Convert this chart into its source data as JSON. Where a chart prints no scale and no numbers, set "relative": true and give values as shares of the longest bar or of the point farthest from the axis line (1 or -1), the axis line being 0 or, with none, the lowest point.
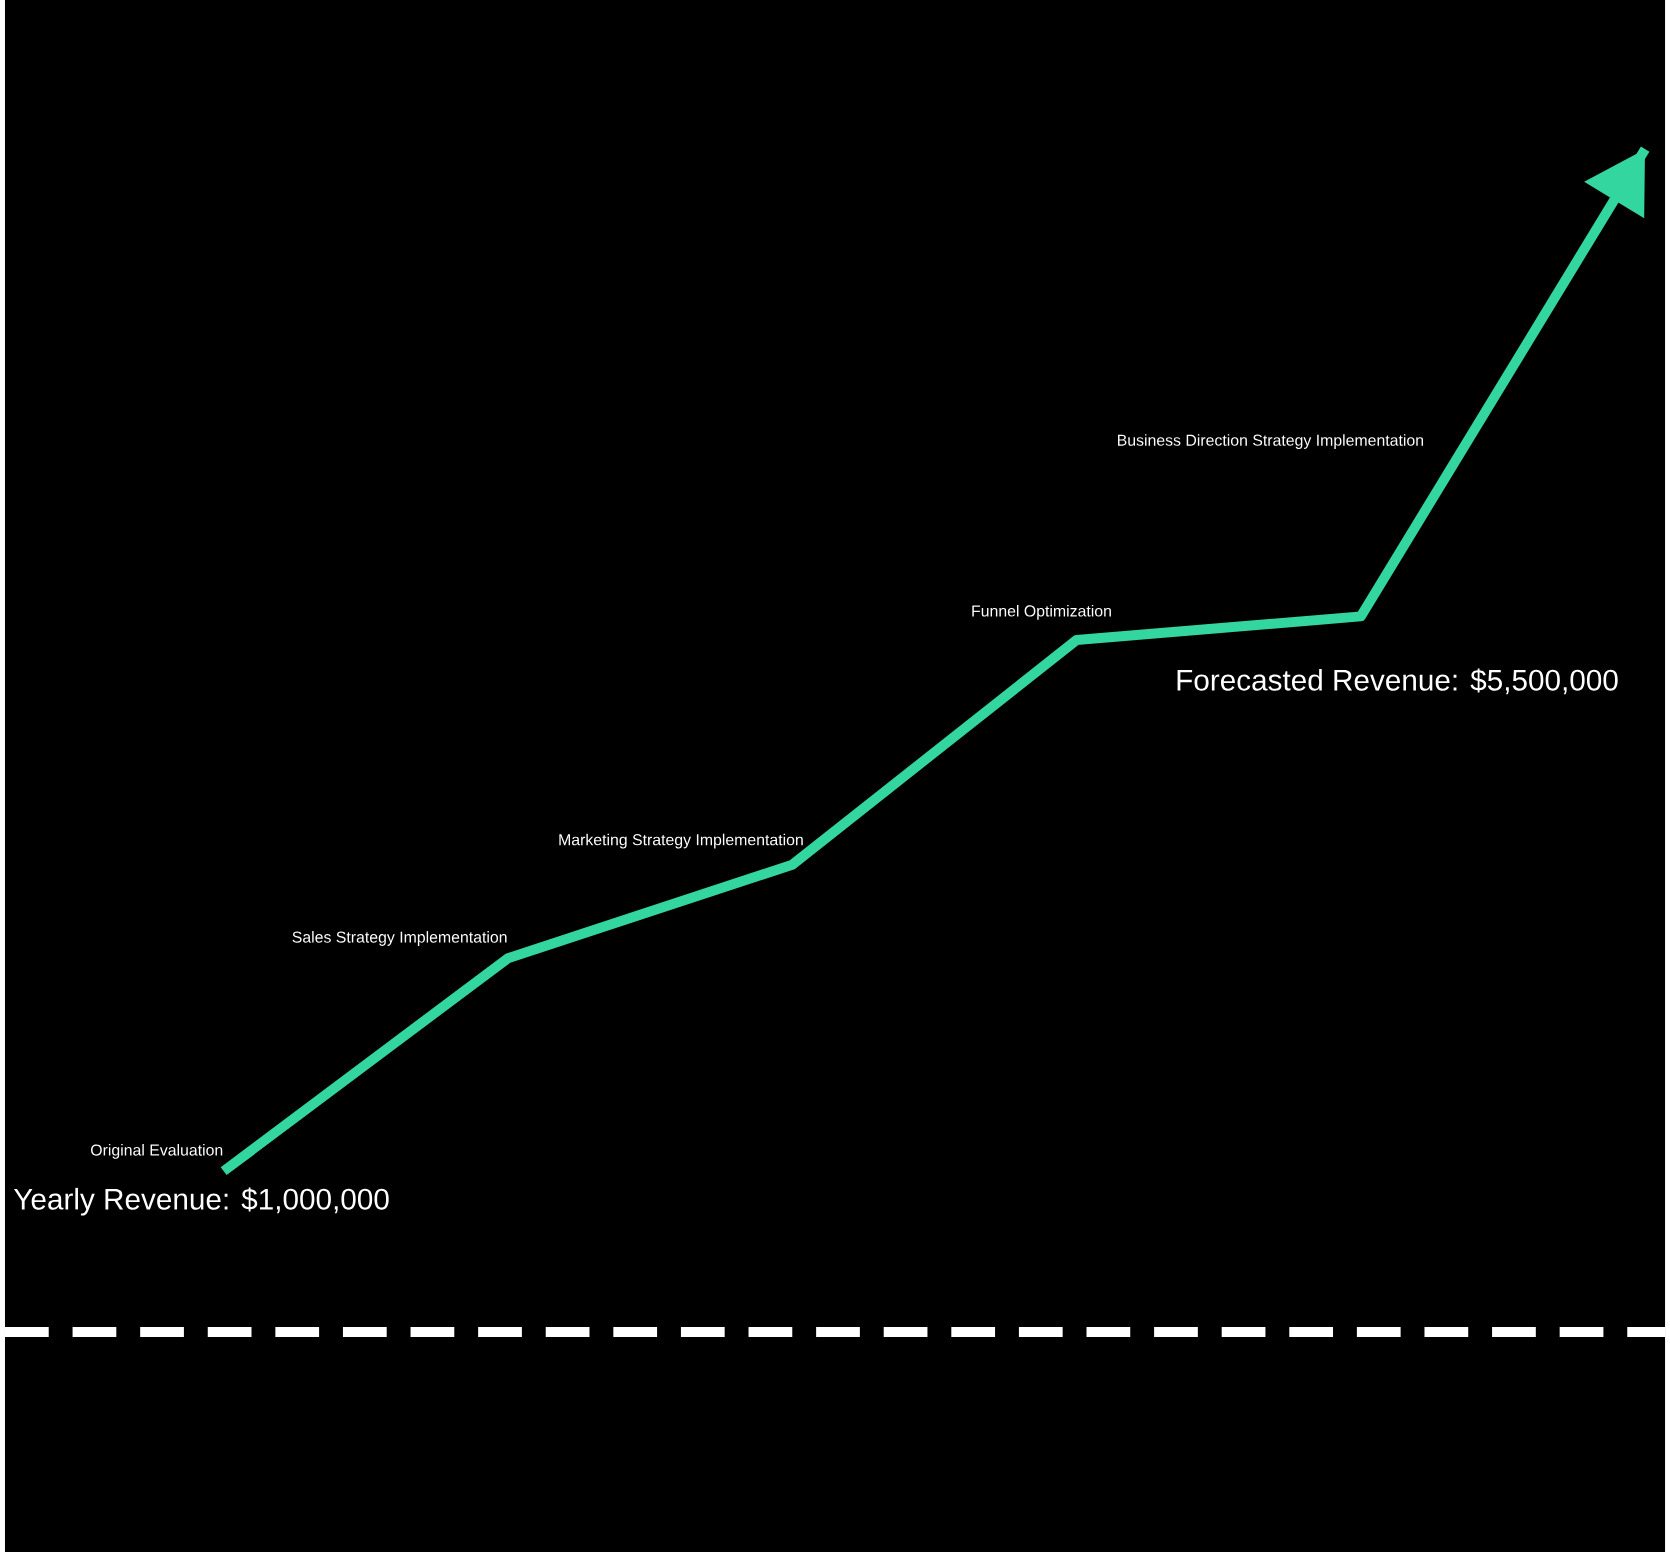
{
  "chart_data": {
    "type": "line",
    "relative": true,
    "categories": [
      null,
      null,
      null,
      null,
      null,
      null
    ],
    "series": [
      {
        "color": "#33d69f",
        "values": [
          0.136,
          0.316,
          0.395,
          0.585,
          0.605,
          1.0
        ]
      }
    ],
    "annotations": [
      "Original Evaluation",
      "Sales Strategy Implementation",
      "Marketing Strategy Implementation",
      "Funnel Optimization",
      "Business Direction Strategy Implementation",
      "Yearly Revenue: $1,000,000",
      "Forecasted Revenue: $5,500,000"
    ]
  }
}
